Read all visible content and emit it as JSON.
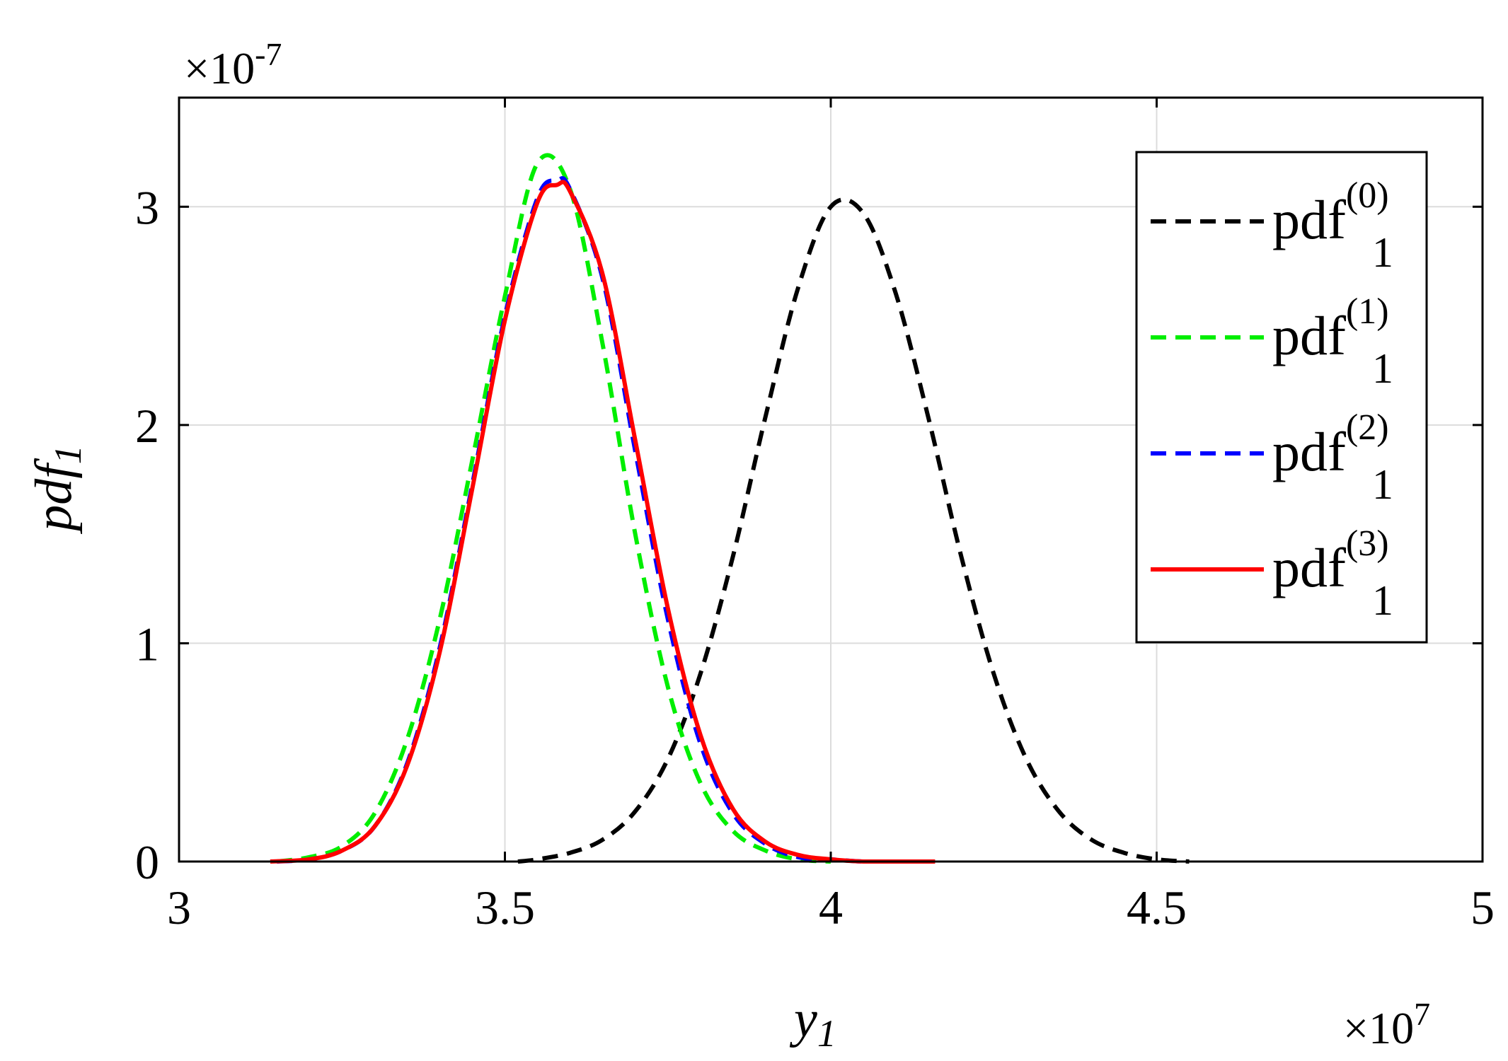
{
  "chart_data": {
    "type": "line",
    "x_multiplier": "×10",
    "x_multiplier_exponent": "7",
    "y_multiplier": "×10",
    "y_multiplier_exponent": "-7",
    "xlabel": "y",
    "xlabel_sub": "1",
    "ylabel": "pdf",
    "ylabel_sub": "1",
    "xlim": [
      3,
      5
    ],
    "ylim": [
      0,
      3.5
    ],
    "x_ticks": [
      3,
      3.5,
      4,
      4.5,
      5
    ],
    "x_tick_labels": [
      "3",
      "3.5",
      "4",
      "4.5",
      "5"
    ],
    "y_ticks": [
      0,
      1,
      2,
      3
    ],
    "y_tick_labels": [
      "0",
      "1",
      "2",
      "3"
    ],
    "grid": true,
    "legend_position": "top-right",
    "series": [
      {
        "name": "pdf",
        "name_sub": "1",
        "name_sup": "(0)",
        "color": "#000000",
        "style": "dashed",
        "x": [
          3.52,
          3.55,
          3.6,
          3.65,
          3.7,
          3.75,
          3.8,
          3.85,
          3.9,
          3.95,
          4.0,
          4.05,
          4.1,
          4.15,
          4.2,
          4.25,
          4.3,
          4.35,
          4.4,
          4.45,
          4.5,
          4.55
        ],
        "y": [
          0.0,
          0.01,
          0.04,
          0.1,
          0.23,
          0.47,
          0.86,
          1.4,
          2.04,
          2.63,
          3.0,
          2.97,
          2.6,
          2.03,
          1.4,
          0.86,
          0.47,
          0.23,
          0.1,
          0.04,
          0.01,
          0.0
        ]
      },
      {
        "name": "pdf",
        "name_sub": "1",
        "name_sup": "(1)",
        "color": "#00ee00",
        "style": "dashed",
        "x": [
          3.15,
          3.2,
          3.25,
          3.3,
          3.35,
          3.4,
          3.45,
          3.5,
          3.55,
          3.6,
          3.65,
          3.7,
          3.75,
          3.8,
          3.85,
          3.9,
          3.95,
          4.0
        ],
        "y": [
          0.0,
          0.02,
          0.07,
          0.22,
          0.56,
          1.11,
          1.84,
          2.59,
          3.2,
          3.08,
          2.37,
          1.5,
          0.8,
          0.36,
          0.14,
          0.05,
          0.01,
          0.0
        ]
      },
      {
        "name": "pdf",
        "name_sub": "1",
        "name_sup": "(2)",
        "color": "#0000ff",
        "style": "dashed",
        "x": [
          3.15,
          3.2,
          3.25,
          3.3,
          3.35,
          3.4,
          3.45,
          3.5,
          3.55,
          3.58,
          3.6,
          3.65,
          3.7,
          3.75,
          3.8,
          3.85,
          3.9,
          3.95,
          4.0,
          4.05,
          4.1,
          4.15
        ],
        "y": [
          0.0,
          0.01,
          0.05,
          0.16,
          0.45,
          0.98,
          1.73,
          2.5,
          3.04,
          3.12,
          3.08,
          2.67,
          1.88,
          1.11,
          0.54,
          0.22,
          0.08,
          0.02,
          0.01,
          0.0,
          0.0,
          0.0
        ]
      },
      {
        "name": "pdf",
        "name_sub": "1",
        "name_sup": "(3)",
        "color": "#ff0000",
        "style": "solid",
        "x": [
          3.14,
          3.2,
          3.25,
          3.3,
          3.35,
          3.4,
          3.45,
          3.5,
          3.55,
          3.58,
          3.6,
          3.65,
          3.7,
          3.75,
          3.8,
          3.85,
          3.9,
          3.95,
          4.0,
          4.05,
          4.1,
          4.16
        ],
        "y": [
          0.0,
          0.01,
          0.05,
          0.16,
          0.44,
          0.96,
          1.71,
          2.48,
          3.02,
          3.1,
          3.07,
          2.69,
          1.93,
          1.16,
          0.58,
          0.24,
          0.09,
          0.03,
          0.01,
          0.0,
          0.0,
          0.0
        ]
      }
    ]
  }
}
